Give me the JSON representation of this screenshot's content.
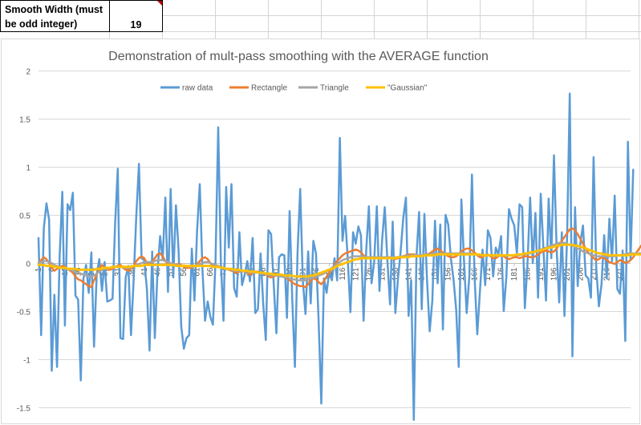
{
  "spreadsheet": {
    "label_line1": "Smooth Width (must",
    "label_line2": "be odd integer)",
    "value": "19"
  },
  "colors": {
    "raw": "#5b9bd5",
    "rectangle": "#ed7d31",
    "triangle": "#a5a5a5",
    "gaussian": "#ffc000",
    "gridline": "#d9d9d9",
    "cell_flag": "#c00000"
  },
  "chart_data": {
    "type": "line",
    "title": "Demonstration of mult-pass smoothing with the AVERAGE function",
    "xlabel": "",
    "ylabel": "",
    "ylim": [
      -1.5,
      2
    ],
    "yticks": [
      "2",
      "1.5",
      "1",
      "0.5",
      "0",
      "-0.5",
      "-1",
      "-1.5"
    ],
    "legend_position": "top",
    "grid": true,
    "x_range": [
      1,
      225
    ],
    "x_tick_labels": [
      "1",
      "6",
      "11",
      "16",
      "21",
      "26",
      "31",
      "36",
      "41",
      "46",
      "51",
      "56",
      "61",
      "66",
      "71",
      "76",
      "81",
      "86",
      "91",
      "96",
      "101",
      "106",
      "111",
      "116",
      "121",
      "126",
      "131",
      "136",
      "141",
      "146",
      "151",
      "156",
      "161",
      "166",
      "171",
      "176",
      "181",
      "186",
      "191",
      "196",
      "201",
      "206",
      "211",
      "216",
      "221"
    ],
    "series": [
      {
        "name": "raw data",
        "color_key": "raw",
        "width": 2.5,
        "values": [
          0.26,
          -0.75,
          0.36,
          0.62,
          0.45,
          -1.12,
          -0.33,
          -1.08,
          0.08,
          0.74,
          -0.65,
          0.61,
          0.55,
          0.73,
          -0.34,
          -0.38,
          -1.22,
          -0.16,
          -0.02,
          -0.31,
          0.11,
          -0.87,
          -0.12,
          0.04,
          -0.29,
          0.01,
          -0.4,
          -0.39,
          -0.37,
          0.41,
          0.98,
          -0.78,
          -0.79,
          -0.15,
          -0.03,
          -0.75,
          -0.17,
          0.49,
          1.03,
          0.05,
          0.03,
          -0.27,
          -0.91,
          0.12,
          -0.78,
          -0.09,
          0.28,
          0.04,
          0.68,
          -0.3,
          0.77,
          -0.15,
          0.6,
          0.13,
          -0.66,
          -0.89,
          -0.78,
          -0.75,
          0.15,
          -0.39,
          0.34,
          0.82,
          -0.06,
          -0.6,
          -0.4,
          -0.56,
          -0.64,
          0.04,
          1.41,
          0.01,
          -0.6,
          0.79,
          0.16,
          0.82,
          -0.26,
          -0.35,
          0.32,
          -0.23,
          -0.12,
          0.02,
          -0.19,
          0.26,
          -0.52,
          -0.48,
          0.1,
          -0.41,
          -0.8,
          0.34,
          0.3,
          -0.22,
          -0.73,
          0.06,
          0.09,
          0.08,
          -0.57,
          0.54,
          -0.38,
          -1.08,
          0.11,
          0.77,
          -0.19,
          -0.53,
          0.12,
          -0.42,
          0.23,
          0.1,
          -0.61,
          -1.46,
          -0.16,
          -0.31,
          -0.09,
          -0.18,
          0.05,
          -0.18,
          1.3,
          0.23,
          0.49,
          0.04,
          -0.51,
          0.32,
          0.2,
          0.38,
          0.29,
          -0.6,
          0.13,
          0.59,
          -0.21,
          0.01,
          0.59,
          -0.29,
          0.24,
          0.58,
          0.02,
          -0.43,
          0.43,
          -0.52,
          -0.16,
          0.12,
          0.47,
          0.68,
          -0.55,
          -0.18,
          -1.63,
          0.06,
          0.53,
          -0.48,
          0.51,
          -0.18,
          -0.71,
          -0.39,
          0.44,
          -0.21,
          0.4,
          -0.69,
          0.5,
          0.4,
          0.05,
          -0.17,
          -0.48,
          -1.08,
          0.66,
          0.02,
          -0.52,
          -0.14,
          0.92,
          -0.15,
          -0.74,
          -0.3,
          0.14,
          -0.23,
          0.34,
          0.26,
          -0.14,
          0.16,
          0.09,
          0.28,
          -0.5,
          -0.14,
          0.56,
          0.46,
          0.39,
          0.1,
          0.61,
          0.58,
          -0.47,
          -0.01,
          0.68,
          0.0,
          0.52,
          -0.36,
          0.72,
          0.16,
          -0.39,
          0.67,
          0.05,
          1.12,
          0.16,
          -0.41,
          0.32,
          -0.55,
          0.28,
          1.76,
          -0.97,
          0.58,
          -0.24,
          0.21,
          0.39,
          -0.13,
          -0.16,
          -0.36,
          1.1,
          -0.05,
          -0.45,
          -0.22,
          0.29,
          -0.16,
          0.46,
          0.02,
          0.7,
          -0.27,
          -0.32,
          0.13,
          -0.81,
          1.26,
          0.04,
          0.97
        ]
      },
      {
        "name": "Rectangle",
        "color_key": "rectangle",
        "width": 2.5,
        "values": [
          0.0,
          0.03,
          0.06,
          0.04,
          0.0,
          -0.05,
          -0.08,
          -0.06,
          -0.04,
          -0.03,
          -0.04,
          -0.06,
          -0.08,
          -0.1,
          -0.14,
          -0.17,
          -0.18,
          -0.2,
          -0.22,
          -0.24,
          -0.25,
          -0.18,
          -0.12,
          -0.06,
          -0.02,
          -0.05,
          -0.07,
          -0.07,
          -0.06,
          -0.04,
          -0.03,
          -0.02,
          -0.05,
          -0.07,
          -0.08,
          -0.06,
          -0.03,
          0.02,
          0.05,
          0.07,
          0.05,
          0.0,
          -0.02,
          0.01,
          0.05,
          0.09,
          0.1,
          0.07,
          0.02,
          -0.01,
          -0.02,
          -0.02,
          -0.02,
          -0.01,
          -0.02,
          -0.04,
          -0.05,
          -0.05,
          -0.05,
          -0.03,
          -0.01,
          0.02,
          0.05,
          0.06,
          0.04,
          0.0,
          -0.02,
          -0.03,
          -0.03,
          -0.04,
          -0.05,
          -0.06,
          -0.07,
          -0.08,
          -0.09,
          -0.1,
          -0.09,
          -0.08,
          -0.09,
          -0.1,
          -0.12,
          -0.11,
          -0.09,
          -0.09,
          -0.1,
          -0.11,
          -0.12,
          -0.14,
          -0.15,
          -0.14,
          -0.13,
          -0.13,
          -0.13,
          -0.14,
          -0.16,
          -0.18,
          -0.2,
          -0.22,
          -0.23,
          -0.24,
          -0.24,
          -0.25,
          -0.22,
          -0.18,
          -0.15,
          -0.17,
          -0.2,
          -0.22,
          -0.19,
          -0.14,
          -0.1,
          -0.06,
          -0.02,
          0.02,
          0.05,
          0.08,
          0.1,
          0.11,
          0.12,
          0.13,
          0.14,
          0.13,
          0.11,
          0.08,
          0.06,
          0.05,
          0.05,
          0.06,
          0.06,
          0.05,
          0.05,
          0.06,
          0.06,
          0.05,
          0.05,
          0.04,
          0.05,
          0.06,
          0.07,
          0.08,
          0.09,
          0.09,
          0.09,
          0.08,
          0.07,
          0.07,
          0.08,
          0.09,
          0.1,
          0.12,
          0.14,
          0.15,
          0.13,
          0.11,
          0.09,
          0.07,
          0.06,
          0.06,
          0.07,
          0.09,
          0.12,
          0.14,
          0.15,
          0.15,
          0.13,
          0.11,
          0.08,
          0.06,
          0.06,
          0.08,
          0.09,
          0.07,
          0.05,
          0.05,
          0.07,
          0.08,
          0.07,
          0.05,
          0.04,
          0.05,
          0.06,
          0.06,
          0.05,
          0.06,
          0.07,
          0.07,
          0.06,
          0.06,
          0.07,
          0.09,
          0.11,
          0.12,
          0.13,
          0.12,
          0.11,
          0.12,
          0.15,
          0.19,
          0.23,
          0.27,
          0.31,
          0.35,
          0.36,
          0.34,
          0.3,
          0.25,
          0.2,
          0.15,
          0.11,
          0.08,
          0.05,
          0.03,
          0.04,
          0.06,
          0.05,
          0.03,
          0.01,
          0.0,
          -0.01,
          0.01,
          0.03,
          0.02,
          0.0,
          0.01,
          0.03,
          0.06,
          0.1,
          0.14,
          0.18,
          0.12,
          0.08
        ]
      },
      {
        "name": "Triangle",
        "color_key": "triangle",
        "width": 2.5,
        "values": [
          0.0,
          0.01,
          0.02,
          0.02,
          0.01,
          0.0,
          -0.02,
          -0.03,
          -0.04,
          -0.05,
          -0.06,
          -0.06,
          -0.07,
          -0.08,
          -0.09,
          -0.1,
          -0.11,
          -0.12,
          -0.13,
          -0.14,
          -0.14,
          -0.13,
          -0.11,
          -0.09,
          -0.07,
          -0.06,
          -0.06,
          -0.05,
          -0.05,
          -0.04,
          -0.04,
          -0.04,
          -0.04,
          -0.05,
          -0.05,
          -0.04,
          -0.03,
          -0.02,
          -0.01,
          0.0,
          0.01,
          0.01,
          0.01,
          0.01,
          0.02,
          0.03,
          0.03,
          0.03,
          0.02,
          0.01,
          0.0,
          -0.01,
          -0.02,
          -0.02,
          -0.03,
          -0.03,
          -0.03,
          -0.04,
          -0.04,
          -0.03,
          -0.02,
          -0.01,
          0.0,
          0.01,
          0.01,
          0.0,
          -0.01,
          -0.02,
          -0.03,
          -0.04,
          -0.05,
          -0.06,
          -0.07,
          -0.07,
          -0.08,
          -0.08,
          -0.08,
          -0.08,
          -0.09,
          -0.09,
          -0.1,
          -0.1,
          -0.1,
          -0.1,
          -0.11,
          -0.11,
          -0.12,
          -0.12,
          -0.13,
          -0.13,
          -0.13,
          -0.14,
          -0.14,
          -0.15,
          -0.15,
          -0.16,
          -0.17,
          -0.17,
          -0.18,
          -0.18,
          -0.18,
          -0.18,
          -0.17,
          -0.16,
          -0.15,
          -0.14,
          -0.13,
          -0.12,
          -0.11,
          -0.09,
          -0.07,
          -0.05,
          -0.03,
          -0.01,
          0.01,
          0.03,
          0.04,
          0.05,
          0.06,
          0.07,
          0.07,
          0.07,
          0.07,
          0.07,
          0.06,
          0.06,
          0.06,
          0.06,
          0.06,
          0.06,
          0.06,
          0.06,
          0.06,
          0.06,
          0.06,
          0.06,
          0.06,
          0.07,
          0.07,
          0.07,
          0.08,
          0.08,
          0.08,
          0.08,
          0.08,
          0.08,
          0.09,
          0.09,
          0.09,
          0.1,
          0.1,
          0.1,
          0.1,
          0.1,
          0.1,
          0.1,
          0.1,
          0.1,
          0.1,
          0.1,
          0.1,
          0.1,
          0.1,
          0.1,
          0.1,
          0.09,
          0.09,
          0.08,
          0.08,
          0.08,
          0.08,
          0.08,
          0.08,
          0.08,
          0.08,
          0.08,
          0.08,
          0.08,
          0.08,
          0.08,
          0.08,
          0.08,
          0.08,
          0.09,
          0.09,
          0.1,
          0.1,
          0.11,
          0.12,
          0.13,
          0.14,
          0.15,
          0.16,
          0.17,
          0.18,
          0.19,
          0.2,
          0.21,
          0.21,
          0.21,
          0.2,
          0.19,
          0.18,
          0.17,
          0.15,
          0.14,
          0.12,
          0.11,
          0.1,
          0.09,
          0.08,
          0.07,
          0.07,
          0.07,
          0.07,
          0.07,
          0.07,
          0.07,
          0.07,
          0.08,
          0.08,
          0.09,
          0.09,
          0.1,
          0.1,
          0.1,
          0.1,
          0.1,
          0.1
        ]
      },
      {
        "name": "\"Gaussian\"",
        "color_key": "gaussian",
        "width": 3,
        "values": [
          -0.02,
          -0.02,
          -0.02,
          -0.03,
          -0.03,
          -0.03,
          -0.04,
          -0.04,
          -0.05,
          -0.05,
          -0.05,
          -0.06,
          -0.06,
          -0.06,
          -0.06,
          -0.07,
          -0.07,
          -0.07,
          -0.07,
          -0.07,
          -0.07,
          -0.07,
          -0.06,
          -0.06,
          -0.06,
          -0.05,
          -0.05,
          -0.05,
          -0.04,
          -0.04,
          -0.04,
          -0.04,
          -0.04,
          -0.04,
          -0.04,
          -0.04,
          -0.03,
          -0.03,
          -0.03,
          -0.03,
          -0.02,
          -0.02,
          -0.02,
          -0.02,
          -0.02,
          -0.02,
          -0.02,
          -0.02,
          -0.02,
          -0.02,
          -0.02,
          -0.02,
          -0.03,
          -0.03,
          -0.03,
          -0.03,
          -0.03,
          -0.03,
          -0.03,
          -0.03,
          -0.03,
          -0.03,
          -0.03,
          -0.03,
          -0.03,
          -0.03,
          -0.04,
          -0.04,
          -0.04,
          -0.05,
          -0.05,
          -0.06,
          -0.06,
          -0.06,
          -0.07,
          -0.07,
          -0.07,
          -0.08,
          -0.08,
          -0.08,
          -0.09,
          -0.09,
          -0.09,
          -0.1,
          -0.1,
          -0.1,
          -0.11,
          -0.11,
          -0.11,
          -0.12,
          -0.12,
          -0.12,
          -0.12,
          -0.13,
          -0.13,
          -0.13,
          -0.13,
          -0.14,
          -0.14,
          -0.14,
          -0.14,
          -0.14,
          -0.14,
          -0.13,
          -0.13,
          -0.12,
          -0.11,
          -0.1,
          -0.09,
          -0.08,
          -0.07,
          -0.06,
          -0.05,
          -0.03,
          -0.02,
          -0.01,
          0.0,
          0.01,
          0.02,
          0.03,
          0.04,
          0.04,
          0.05,
          0.05,
          0.05,
          0.05,
          0.05,
          0.05,
          0.05,
          0.05,
          0.05,
          0.05,
          0.05,
          0.05,
          0.05,
          0.05,
          0.06,
          0.06,
          0.06,
          0.06,
          0.06,
          0.07,
          0.07,
          0.07,
          0.07,
          0.07,
          0.08,
          0.08,
          0.08,
          0.08,
          0.08,
          0.09,
          0.09,
          0.09,
          0.09,
          0.09,
          0.09,
          0.09,
          0.09,
          0.09,
          0.09,
          0.09,
          0.09,
          0.09,
          0.09,
          0.09,
          0.09,
          0.09,
          0.08,
          0.08,
          0.08,
          0.08,
          0.08,
          0.08,
          0.08,
          0.08,
          0.08,
          0.08,
          0.08,
          0.08,
          0.08,
          0.09,
          0.09,
          0.09,
          0.1,
          0.1,
          0.11,
          0.11,
          0.12,
          0.13,
          0.13,
          0.14,
          0.15,
          0.16,
          0.16,
          0.17,
          0.18,
          0.18,
          0.19,
          0.19,
          0.19,
          0.19,
          0.19,
          0.18,
          0.18,
          0.17,
          0.16,
          0.15,
          0.14,
          0.13,
          0.12,
          0.11,
          0.1,
          0.1,
          0.09,
          0.09,
          0.08,
          0.08,
          0.08,
          0.08,
          0.08,
          0.08,
          0.08,
          0.08,
          0.09,
          0.09,
          0.09,
          0.09,
          0.09,
          0.09
        ]
      }
    ]
  }
}
